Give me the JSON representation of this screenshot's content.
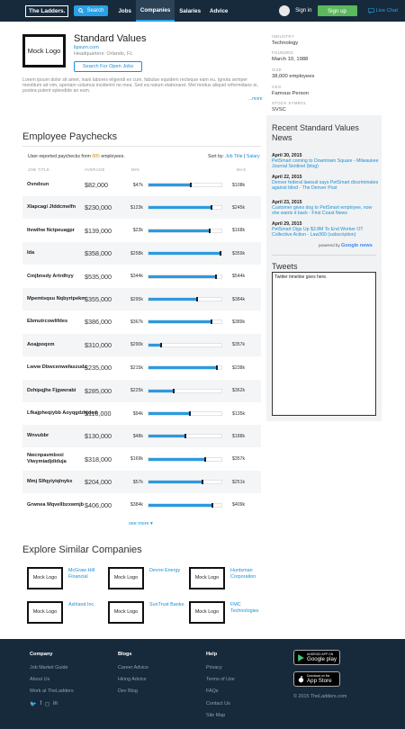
{
  "nav": {
    "logo": "The Ladders.",
    "search_label": "Search",
    "links": [
      "Jobs",
      "Companies",
      "Salaries",
      "Advice"
    ],
    "signin": "Sign in",
    "signup": "Sign up",
    "livechat": "Live Chat"
  },
  "company": {
    "logo_text": "Mock Logo",
    "name": "Standard Values",
    "url": "lipsum.com",
    "hq": "Headquarters: Orlando, FL",
    "open_jobs": "Search For Open Jobs",
    "description": "Lorem ipsum dolor sit amet, inani labores eligendi ex cum, fabulue equidem recteque eam eu. Ignota semper mentitum ad vim, aperiam volumus inciderint ne mea. Sed ea natum elaboraret. Mel modus aliquid reformidans ei, postea putent splendide an eum.",
    "more": "...more"
  },
  "meta": {
    "industry_label": "INDUSTRY",
    "industry": "Technology",
    "founded_label": "FOUNDED",
    "founded": "March 10, 1988",
    "size_label": "SIZE",
    "size": "38,000 employees",
    "ceo_label": "CEO",
    "ceo": "Famous Person",
    "stock_label": "STOCK SYMBOL",
    "stock": "SVSC"
  },
  "paychecks": {
    "title": "Employee Paychecks",
    "reported_prefix": "User-reported paychecks from ",
    "reported_count": "885",
    "reported_suffix": " employees.",
    "sort_prefix": "Sort by: ",
    "sort_title": "Job Title",
    "sort_sep": " | ",
    "sort_salary": "Salary",
    "headers": {
      "title": "JOB TITLE",
      "avg": "AVERAGE",
      "min": "MIN",
      "max": "MAX"
    },
    "rows": [
      {
        "title": "Ovndxun",
        "avg": "$82,000",
        "min": "$47k",
        "max": "$108k",
        "fill": 0.58
      },
      {
        "title": "Xlapcagi Jlddcmelfn",
        "avg": "$230,000",
        "min": "$123k",
        "max": "$245k",
        "fill": 0.86
      },
      {
        "title": "Itvwihw Nctpeuagpr",
        "avg": "$139,000",
        "min": "$23k",
        "max": "$168k",
        "fill": 0.84
      },
      {
        "title": "Ida",
        "avg": "$358,000",
        "min": "$258k",
        "max": "$359k",
        "fill": 0.99
      },
      {
        "title": "Cmjbnsdy Artrdhyy",
        "avg": "$535,000",
        "min": "$344k",
        "max": "$544k",
        "fill": 0.93
      },
      {
        "title": "Mpemtsqsu Nqbyrtpekm",
        "avg": "$355,000",
        "min": "$295k",
        "max": "$384k",
        "fill": 0.67
      },
      {
        "title": "Ebmutrcowlifdes",
        "avg": "$386,000",
        "min": "$367k",
        "max": "$389k",
        "fill": 0.87
      },
      {
        "title": "Aoajpoqxm",
        "avg": "$310,000",
        "min": "$290k",
        "max": "$357k",
        "fill": 0.17
      },
      {
        "title": "Lwvw Dbwcenwefaszudz",
        "avg": "$235,000",
        "min": "$215k",
        "max": "$238k",
        "fill": 0.94
      },
      {
        "title": "Dzhipqjhe Fjgwerabi",
        "avg": "$285,000",
        "min": "$225k",
        "max": "$362k",
        "fill": 0.35
      },
      {
        "title": "Lfkajpheqiybb Aoyqgdzhjded",
        "avg": "$118,000",
        "min": "$94k",
        "max": "$135k",
        "fill": 0.57
      },
      {
        "title": "Wnvubbr",
        "avg": "$130,000",
        "min": "$48k",
        "max": "$188k",
        "fill": 0.5
      },
      {
        "title": "Nwcnpavmbxxi Viwymiadjdiduja",
        "avg": "$318,000",
        "min": "$169k",
        "max": "$357k",
        "fill": 0.78
      },
      {
        "title": "Mmj Slfqyiyiqlnykx",
        "avg": "$204,000",
        "min": "$57k",
        "max": "$251k",
        "fill": 0.74
      },
      {
        "title": "Grwnea Mqvellbzxwmjb",
        "avg": "$406,000",
        "min": "$384k",
        "max": "$409k",
        "fill": 0.88
      }
    ],
    "see_more": "see more"
  },
  "news": {
    "title": "Recent Standard Values News",
    "items": [
      {
        "date": "April 30, 2015",
        "headline": "PetSmart coming to Downtown Square - Milwaukee Journal Sentinel (blog)"
      },
      {
        "date": "April 22, 2015",
        "headline": "Denver federal lawsuit says PetSmart discriminates against blind - The Denver Post"
      },
      {
        "date": "April 23, 2015",
        "headline": "Customer gives dog to PetSmart employee, now she wants it back - First Coast News"
      },
      {
        "date": "April 29, 2015",
        "headline": "PetSmart Digs Up $3.8M To End Worker OT Collective Action - Law360 (subscription)"
      }
    ],
    "powered_prefix": "powered by",
    "powered_brand": "Google news",
    "tweets_title": "Tweets",
    "tweets_placeholder": "Twitter timeline goes here."
  },
  "similar": {
    "title": "Explore Similar Companies",
    "logo_text": "Mock Logo",
    "companies": [
      "McGraw Hill Financial",
      "Devon Energy",
      "Huntsman Corporation",
      "Ashland Inc.",
      "SunTrust Banke",
      "FMC Technologies"
    ]
  },
  "footer": {
    "company_heading": "Company",
    "company_links": [
      "Job Market Guide",
      "About Us",
      "Work at TheLadders"
    ],
    "blogs_heading": "Blogs",
    "blogs_links": [
      "Career Advice",
      "Hiring Advice",
      "Dev Blog"
    ],
    "help_heading": "Help",
    "help_links": [
      "Privacy",
      "Terms of Use",
      "FAQs",
      "Contact Us",
      "Site Map"
    ],
    "google_play_small": "ANDROID APP ON",
    "google_play": "Google play",
    "app_store_small": "Download on the",
    "app_store": "App Store",
    "copyright": "© 2015 TheLadders.com"
  }
}
